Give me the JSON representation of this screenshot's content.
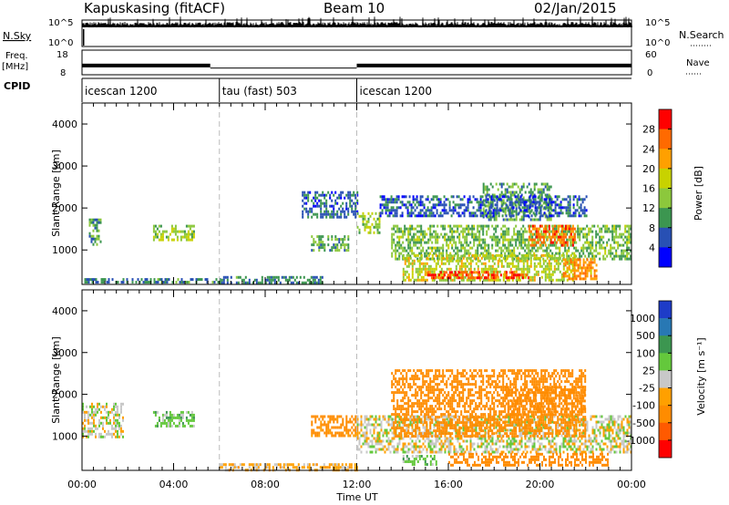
{
  "header": {
    "station": "Kapuskasing (fitACF)",
    "beam": "Beam 10",
    "date": "02/Jan/2015"
  },
  "strips": {
    "nsky_label": "N.Sky",
    "nsky_ticks": [
      "10^5",
      "10^0"
    ],
    "nsearch_label": "N.Search",
    "nsearch_ticks": [
      "10^5",
      "10^0"
    ],
    "freq_label": "Freq.",
    "freq_unit": "[MHz]",
    "freq_ticks": [
      "18",
      "8"
    ],
    "nave_label": "Nave",
    "nave_ticks": [
      "60",
      "0"
    ],
    "cpid_label": "CPID",
    "cpid_segments": [
      {
        "label": "icescan 1200",
        "start_h": 0,
        "end_h": 6
      },
      {
        "label": "tau (fast) 503",
        "start_h": 6,
        "end_h": 12
      },
      {
        "label": "icescan 1200",
        "start_h": 12,
        "end_h": 24
      }
    ]
  },
  "panels": {
    "power": {
      "ylabel": "Slant Range [km]",
      "colorbar_label": "Power [dB]",
      "colorbar_ticks": [
        "28",
        "24",
        "20",
        "16",
        "12",
        "8",
        "4"
      ],
      "colorbar_colors": [
        "#ff0000",
        "#ff6a00",
        "#ffa000",
        "#c8d200",
        "#8cc83c",
        "#3c9650",
        "#2850b4",
        "#0000ff"
      ]
    },
    "velocity": {
      "ylabel": "Slant Range [km]",
      "colorbar_label": "Velocity [m s⁻¹]",
      "colorbar_ticks": [
        "1000",
        "500",
        "100",
        "25",
        "-25",
        "-100",
        "-500",
        "-1000"
      ],
      "colorbar_colors": [
        "#1e3cc8",
        "#2878b4",
        "#3c9650",
        "#64c83c",
        "#c8c8c8",
        "#ffa000",
        "#ff8c00",
        "#ff5a00",
        "#ff0000"
      ]
    }
  },
  "x_axis": {
    "label": "Time UT",
    "ticks": [
      "00:00",
      "04:00",
      "08:00",
      "12:00",
      "16:00",
      "20:00",
      "00:00"
    ]
  },
  "y_ticks": [
    "4000",
    "3000",
    "2000",
    "1000"
  ],
  "chart_data": [
    {
      "type": "heatmap",
      "title": "Kapuskasing (fitACF) Beam 10 02/Jan/2015",
      "quantity": "Power",
      "xlabel": "Time UT",
      "ylabel": "Slant Range [km]",
      "xlim_hours": [
        0,
        24
      ],
      "ylim": [
        180,
        4500
      ],
      "colorbar": {
        "label": "Power [dB]",
        "range": [
          0,
          30
        ],
        "ticks": [
          4,
          8,
          12,
          16,
          20,
          24,
          28
        ]
      },
      "dashed_vertical_lines_hours": [
        6,
        12
      ],
      "regions": [
        {
          "t": [
            0.3,
            0.8
          ],
          "r": [
            1150,
            1750
          ],
          "level": 10
        },
        {
          "t": [
            3.1,
            4.9
          ],
          "r": [
            1250,
            1600
          ],
          "level": 14
        },
        {
          "t": [
            0.1,
            6.0
          ],
          "r": [
            200,
            330
          ],
          "level": 8
        },
        {
          "t": [
            6.0,
            10.5
          ],
          "r": [
            200,
            380
          ],
          "level": 8
        },
        {
          "t": [
            10.0,
            11.6
          ],
          "r": [
            1000,
            1350
          ],
          "level": 10
        },
        {
          "t": [
            9.6,
            12.0
          ],
          "r": [
            1800,
            2400
          ],
          "level": 6
        },
        {
          "t": [
            12.0,
            13.0
          ],
          "r": [
            1400,
            1900
          ],
          "level": 14
        },
        {
          "t": [
            13.5,
            24.0
          ],
          "r": [
            800,
            1600
          ],
          "level": 12
        },
        {
          "t": [
            14.0,
            21.5
          ],
          "r": [
            300,
            900
          ],
          "level": 16
        },
        {
          "t": [
            15.0,
            19.5
          ],
          "r": [
            350,
            500
          ],
          "level": 26
        },
        {
          "t": [
            17.5,
            20.5
          ],
          "r": [
            1700,
            2600
          ],
          "level": 10
        },
        {
          "t": [
            19.5,
            21.5
          ],
          "r": [
            1100,
            1600
          ],
          "level": 24
        },
        {
          "t": [
            13.0,
            22.0
          ],
          "r": [
            1800,
            2300
          ],
          "level": 6
        },
        {
          "t": [
            21.0,
            22.5
          ],
          "r": [
            300,
            800
          ],
          "level": 22
        }
      ]
    },
    {
      "type": "heatmap",
      "quantity": "Velocity",
      "xlabel": "Time UT",
      "ylabel": "Slant Range [km]",
      "xlim_hours": [
        0,
        24
      ],
      "ylim": [
        180,
        4500
      ],
      "colorbar": {
        "label": "Velocity [m s⁻¹]",
        "range": [
          -1000,
          1000
        ],
        "ticks": [
          -1000,
          -500,
          -100,
          -25,
          25,
          100,
          500,
          1000
        ]
      },
      "dashed_vertical_lines_hours": [
        6,
        12
      ],
      "regions": [
        {
          "t": [
            0.0,
            1.8
          ],
          "r": [
            1000,
            1800
          ],
          "level": 0
        },
        {
          "t": [
            3.1,
            4.9
          ],
          "r": [
            1250,
            1600
          ],
          "level": 60
        },
        {
          "t": [
            10.0,
            12.0
          ],
          "r": [
            1000,
            1500
          ],
          "level": -150
        },
        {
          "t": [
            12.0,
            24.0
          ],
          "r": [
            600,
            1500
          ],
          "level": 0
        },
        {
          "t": [
            13.5,
            22.0
          ],
          "r": [
            1000,
            2600
          ],
          "level": -300
        },
        {
          "t": [
            18.5,
            22.0
          ],
          "r": [
            1500,
            2200
          ],
          "level": -400
        },
        {
          "t": [
            14.0,
            15.5
          ],
          "r": [
            350,
            550
          ],
          "level": 60
        },
        {
          "t": [
            16.0,
            23.0
          ],
          "r": [
            300,
            600
          ],
          "level": -200
        },
        {
          "t": [
            6.0,
            12.0
          ],
          "r": [
            200,
            350
          ],
          "level": -50
        }
      ]
    },
    {
      "type": "line",
      "quantity": "N.Sky / N.Search",
      "ylim_text": [
        "10^0",
        "10^5"
      ],
      "xlim_hours": [
        0,
        24
      ]
    },
    {
      "type": "line",
      "quantity": "Freq. [MHz] / Nave",
      "freq_ticks": [
        8,
        18
      ],
      "nave_ticks": [
        0,
        60
      ],
      "xlim_hours": [
        0,
        24
      ],
      "segments": [
        {
          "start_h": 0.0,
          "end_h": 5.6,
          "freq_band": [
            11,
            12.5
          ]
        },
        {
          "start_h": 5.6,
          "end_h": 12.0,
          "freq_band": [
            10.7,
            10.9
          ]
        },
        {
          "start_h": 12.0,
          "end_h": 24.0,
          "freq_band": [
            11,
            12.5
          ]
        }
      ]
    }
  ]
}
